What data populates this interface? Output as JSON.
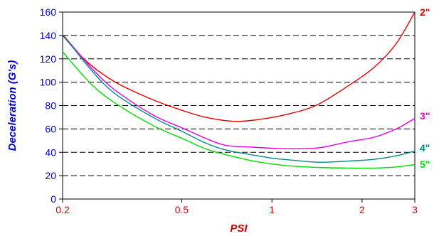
{
  "chart_data": {
    "type": "line",
    "title": "",
    "xlabel": "PSI",
    "ylabel": "Deceleration (G's)",
    "x_scale": "log",
    "xlim": [
      0.2,
      3
    ],
    "ylim": [
      0,
      160
    ],
    "x_ticks": [
      {
        "value": 0.2,
        "label": "0.2"
      },
      {
        "value": 0.5,
        "label": "0.5"
      },
      {
        "value": 1,
        "label": "1"
      },
      {
        "value": 2,
        "label": "2"
      },
      {
        "value": 3,
        "label": "3"
      }
    ],
    "y_ticks": [
      {
        "value": 0,
        "label": "0"
      },
      {
        "value": 20,
        "label": "20"
      },
      {
        "value": 40,
        "label": "40"
      },
      {
        "value": 60,
        "label": "60"
      },
      {
        "value": 80,
        "label": "80"
      },
      {
        "value": 100,
        "label": "100"
      },
      {
        "value": 120,
        "label": "120"
      },
      {
        "value": 140,
        "label": "140"
      },
      {
        "value": 160,
        "label": "160"
      }
    ],
    "grid": "horizontal dashed",
    "legend": "series labels at right end of lines",
    "series": [
      {
        "name": "2\"",
        "color": "#e60000",
        "points": [
          [
            0.2,
            140
          ],
          [
            0.24,
            118
          ],
          [
            0.3,
            100
          ],
          [
            0.4,
            85
          ],
          [
            0.5,
            76
          ],
          [
            0.6,
            70
          ],
          [
            0.75,
            66.5
          ],
          [
            0.9,
            68
          ],
          [
            1.1,
            72
          ],
          [
            1.4,
            80
          ],
          [
            1.8,
            97
          ],
          [
            2.2,
            113
          ],
          [
            2.6,
            133
          ],
          [
            3,
            160
          ]
        ]
      },
      {
        "name": "3\"",
        "color": "#e600e6",
        "points": [
          [
            0.2,
            141
          ],
          [
            0.25,
            112
          ],
          [
            0.3,
            93
          ],
          [
            0.4,
            72
          ],
          [
            0.5,
            61
          ],
          [
            0.6,
            52
          ],
          [
            0.7,
            46
          ],
          [
            0.85,
            44.5
          ],
          [
            1,
            43.5
          ],
          [
            1.2,
            43
          ],
          [
            1.45,
            44
          ],
          [
            1.8,
            49
          ],
          [
            2.2,
            53
          ],
          [
            2.6,
            60
          ],
          [
            3,
            69
          ]
        ]
      },
      {
        "name": "4\"",
        "color": "#008a8a",
        "points": [
          [
            0.2,
            141
          ],
          [
            0.25,
            110
          ],
          [
            0.3,
            90
          ],
          [
            0.4,
            70
          ],
          [
            0.5,
            58
          ],
          [
            0.6,
            48
          ],
          [
            0.7,
            42
          ],
          [
            0.85,
            38
          ],
          [
            1,
            35
          ],
          [
            1.2,
            33
          ],
          [
            1.45,
            31.5
          ],
          [
            1.8,
            32.5
          ],
          [
            2.2,
            34
          ],
          [
            2.6,
            37
          ],
          [
            3,
            41
          ]
        ]
      },
      {
        "name": "5\"",
        "color": "#00dd00",
        "points": [
          [
            0.2,
            126
          ],
          [
            0.25,
            98
          ],
          [
            0.3,
            82
          ],
          [
            0.4,
            63
          ],
          [
            0.5,
            52
          ],
          [
            0.6,
            43
          ],
          [
            0.7,
            38
          ],
          [
            0.85,
            33
          ],
          [
            1,
            30
          ],
          [
            1.2,
            28
          ],
          [
            1.45,
            27
          ],
          [
            1.8,
            26.5
          ],
          [
            2.2,
            26.5
          ],
          [
            2.6,
            27.5
          ],
          [
            3,
            29.5
          ]
        ]
      }
    ]
  }
}
